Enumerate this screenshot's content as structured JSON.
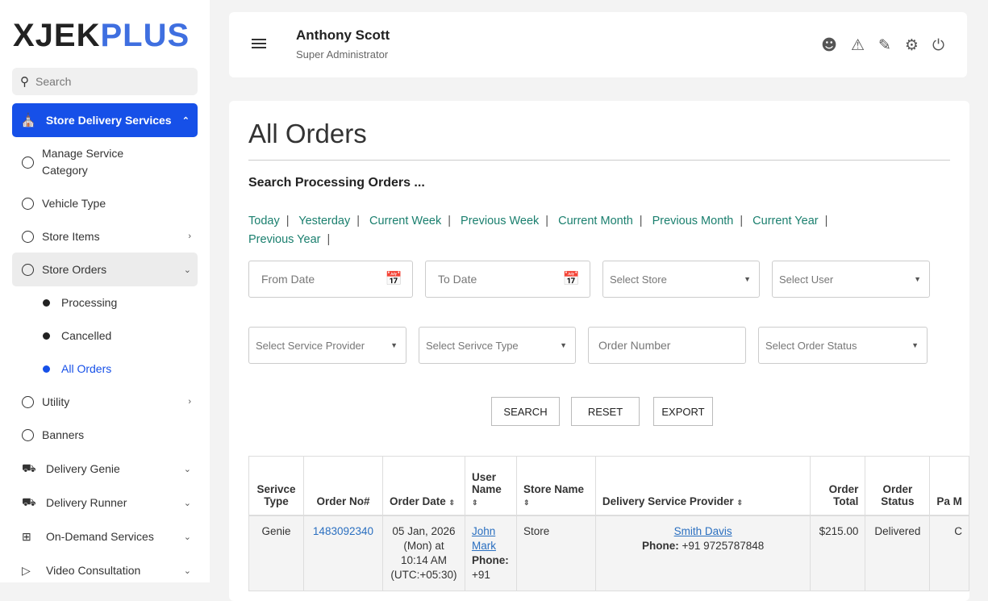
{
  "brand": {
    "part1": "XJEK",
    "part2": "PLUS",
    "accent": "#3f6fe0"
  },
  "sidebar": {
    "search_placeholder": "Search",
    "section": "Store Delivery Services",
    "items": [
      {
        "label": "Manage Service Category"
      },
      {
        "label": "Vehicle Type"
      },
      {
        "label": "Store Items"
      },
      {
        "label": "Store Orders"
      },
      {
        "label": "Processing"
      },
      {
        "label": "Cancelled"
      },
      {
        "label": "All Orders"
      },
      {
        "label": "Utility"
      },
      {
        "label": "Banners"
      },
      {
        "label": "Delivery Genie"
      },
      {
        "label": "Delivery Runner"
      },
      {
        "label": "On-Demand Services"
      },
      {
        "label": "Video Consultation"
      }
    ]
  },
  "header": {
    "name": "Anthony Scott",
    "role": "Super Administrator",
    "icons": [
      "user-icon",
      "alert-icon",
      "edit-icon",
      "settings-icon",
      "power-icon"
    ]
  },
  "page": {
    "title": "All Orders",
    "subtitle": "Search Processing Orders ...",
    "quick_filters": [
      "Today",
      "Yesterday",
      "Current Week",
      "Previous Week",
      "Current Month",
      "Previous Month",
      "Current Year",
      "Previous Year"
    ],
    "filters": {
      "from_date": "From Date",
      "to_date": "To Date",
      "store": "Select Store",
      "user": "Select User",
      "provider": "Select Service Provider",
      "service_type": "Select Serivce Type",
      "order_number": "Order Number",
      "order_status": "Select Order Status"
    },
    "buttons": {
      "search": "SEARCH",
      "reset": "RESET",
      "export": "EXPORT"
    }
  },
  "table": {
    "headers": [
      "Serivce Type",
      "Order No#",
      "Order Date",
      "User Name",
      "Store Name",
      "Delivery Service Provider",
      "Order Total",
      "Order Status",
      "Pa M"
    ],
    "rows": [
      {
        "service_type": "Genie",
        "order_no": "1483092340",
        "order_date": "05 Jan, 2026 (Mon) at 10:14 AM (UTC:+05:30)",
        "user_name": "John Mark",
        "user_phone_label": "Phone:",
        "user_phone": "+91",
        "store": "Store",
        "provider": "Smith Davis",
        "provider_phone_label": "Phone:",
        "provider_phone": "+91 9725787848",
        "total": "$215.00",
        "status": "Delivered",
        "payment": "C"
      }
    ]
  }
}
